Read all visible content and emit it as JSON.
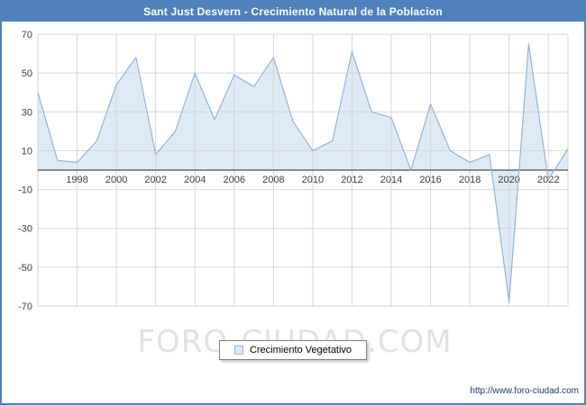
{
  "header": {
    "title": "Sant Just Desvern - Crecimiento Natural de la Poblacion",
    "bg_color": "#4f81bd",
    "text_color": "#ffffff"
  },
  "watermark": "FORO-CIUDAD.COM",
  "legend": {
    "label": "Crecimiento Vegetativo",
    "swatch_fill": "#dce9f8",
    "swatch_stroke": "#95b3d7"
  },
  "footer": {
    "url": "http://www.foro-ciudad.com"
  },
  "chart_data": {
    "type": "area",
    "title": "Sant Just Desvern - Crecimiento Natural de la Poblacion",
    "x": [
      1996,
      1997,
      1998,
      1999,
      2000,
      2001,
      2002,
      2003,
      2004,
      2005,
      2006,
      2007,
      2008,
      2009,
      2010,
      2011,
      2012,
      2013,
      2014,
      2015,
      2016,
      2017,
      2018,
      2019,
      2020,
      2021,
      2022,
      2023
    ],
    "values": [
      40,
      5,
      4,
      15,
      44,
      58,
      8,
      20,
      50,
      26,
      49,
      43,
      58,
      25,
      10,
      15,
      61,
      30,
      27,
      0,
      34,
      10,
      4,
      8,
      -68,
      65,
      -5,
      11
    ],
    "series_name": "Crecimiento Vegetativo",
    "ylim": [
      -70,
      70
    ],
    "yticks": [
      70,
      50,
      30,
      10,
      -10,
      -30,
      -50,
      -70
    ],
    "xticks": [
      1998,
      2000,
      2002,
      2004,
      2006,
      2008,
      2010,
      2012,
      2014,
      2016,
      2018,
      2020,
      2022
    ],
    "xlabel": "",
    "ylabel": "",
    "grid": true,
    "legend_position": "bottom",
    "line_color": "#95b3d7",
    "fill_color": "#bdd7ee",
    "fill_opacity": 0.5,
    "grid_color": "#d6d6d6",
    "zero_axis_color": "#4d4d4d",
    "tick_color": "#404040"
  }
}
